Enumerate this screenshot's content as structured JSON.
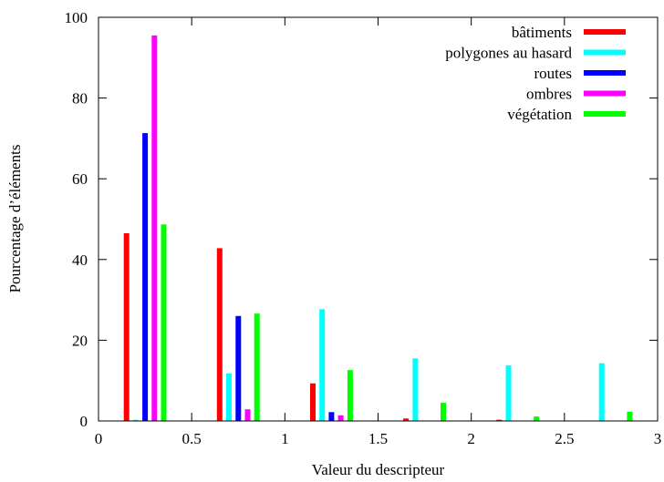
{
  "chart_data": {
    "type": "bar",
    "title": "",
    "xlabel": "Valeur du descripteur",
    "ylabel": "Pourcentage d’éléments",
    "xlim": [
      0,
      3
    ],
    "ylim": [
      0,
      100
    ],
    "xticks": [
      "0",
      "0.5",
      "1",
      "1.5",
      "2",
      "2.5",
      "3"
    ],
    "yticks": [
      "0",
      "20",
      "40",
      "60",
      "80",
      "100"
    ],
    "legend_position": "top-right",
    "grid": false,
    "x": [
      0.25,
      0.75,
      1.25,
      1.75,
      2.25,
      2.75
    ],
    "series": [
      {
        "name": "bâtiments",
        "color": "#ff0000",
        "offset": -0.1,
        "values": [
          46.5,
          42.8,
          9.3,
          0.6,
          0.3,
          0
        ]
      },
      {
        "name": "polygones au hasard",
        "color": "#00ffff",
        "offset": -0.05,
        "values": [
          0.3,
          11.8,
          27.7,
          15.5,
          13.8,
          14.3
        ]
      },
      {
        "name": "routes",
        "color": "#0000ff",
        "offset": 0.0,
        "values": [
          71.3,
          26.0,
          2.2,
          0,
          0,
          0
        ]
      },
      {
        "name": "ombres",
        "color": "#ff00ff",
        "offset": 0.05,
        "values": [
          95.5,
          2.9,
          1.4,
          0,
          0,
          0
        ]
      },
      {
        "name": "végétation",
        "color": "#00ff00",
        "offset": 0.1,
        "values": [
          48.7,
          26.6,
          12.6,
          4.5,
          1.1,
          2.3
        ]
      }
    ]
  }
}
